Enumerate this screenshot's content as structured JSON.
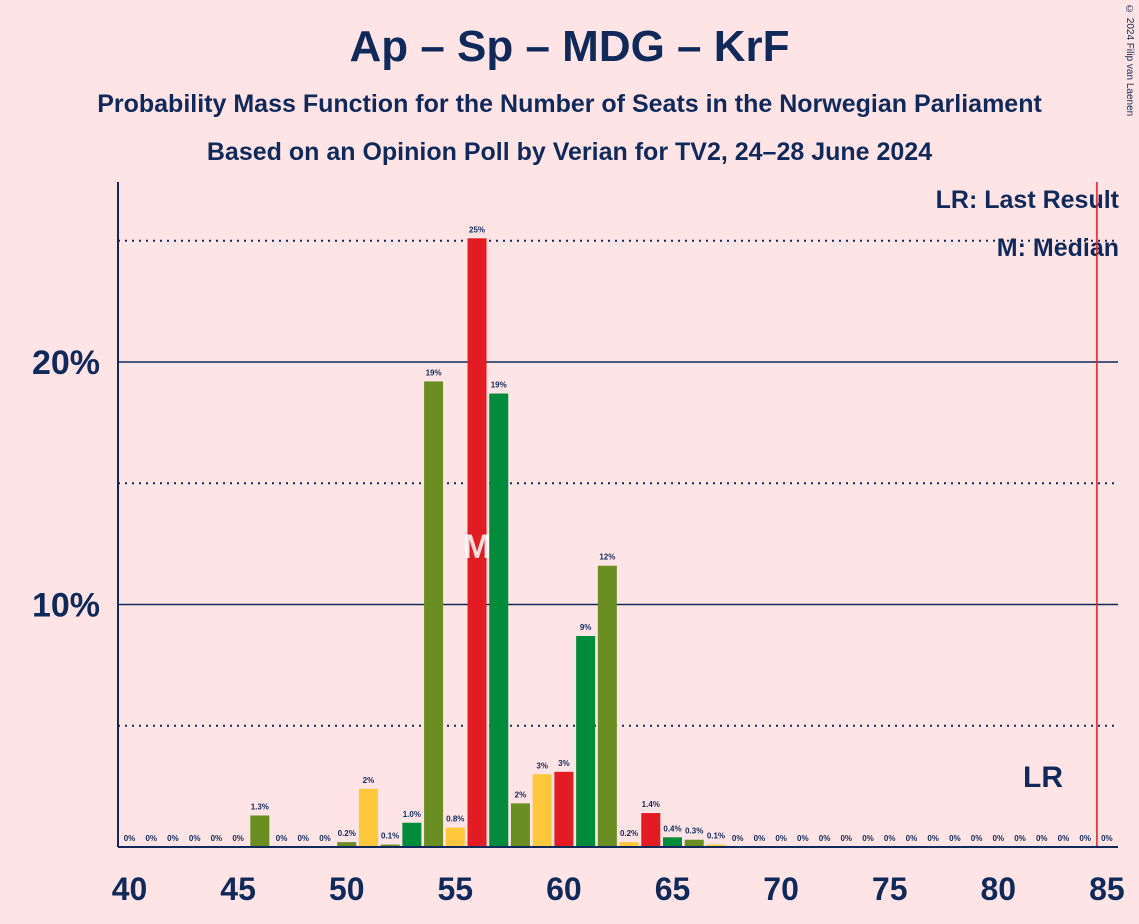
{
  "title": "Ap – Sp – MDG – KrF",
  "subtitle1": "Probability Mass Function for the Number of Seats in the Norwegian Parliament",
  "subtitle2": "Based on an Opinion Poll by Verian for TV2, 24–28 June 2024",
  "copyright": "© 2024 Filip van Laenen",
  "legend": {
    "last_result": "LR: Last Result",
    "median": "M: Median"
  },
  "markers": {
    "median_label": "M",
    "median_seat": 56,
    "last_result_label": "LR",
    "last_result_seat": 85
  },
  "colors": {
    "background": "#ffe4e6",
    "text": "#0f2a5a",
    "olive": "#6b8e23",
    "yellow": "#ffc83c",
    "green": "#008c3a",
    "red": "#e31b23",
    "lr_line": "#e31b23"
  },
  "chart_data": {
    "type": "bar",
    "x_range": [
      40,
      85
    ],
    "ylim": [
      0,
      27.5
    ],
    "y_ticks": [
      {
        "value": 10,
        "label": "10%"
      },
      {
        "value": 20,
        "label": "20%"
      }
    ],
    "x_ticks": [
      40,
      45,
      50,
      55,
      60,
      65,
      70,
      75,
      80,
      85
    ],
    "solid_gridlines": [
      10,
      20
    ],
    "dotted_gridlines": [
      5,
      15,
      25
    ],
    "bars": [
      {
        "x": 40,
        "value": 0,
        "label": "0%",
        "color": "olive"
      },
      {
        "x": 41,
        "value": 0,
        "label": "0%",
        "color": "yellow"
      },
      {
        "x": 42,
        "value": 0,
        "label": "0%",
        "color": "green"
      },
      {
        "x": 43,
        "value": 0,
        "label": "0%",
        "color": "red"
      },
      {
        "x": 44,
        "value": 0,
        "label": "0%",
        "color": "olive"
      },
      {
        "x": 45,
        "value": 0,
        "label": "0%",
        "color": "yellow"
      },
      {
        "x": 46,
        "value": 1.3,
        "label": "1.3%",
        "color": "olive"
      },
      {
        "x": 47,
        "value": 0,
        "label": "0%",
        "color": "red"
      },
      {
        "x": 48,
        "value": 0,
        "label": "0%",
        "color": "olive"
      },
      {
        "x": 49,
        "value": 0,
        "label": "0%",
        "color": "yellow"
      },
      {
        "x": 50,
        "value": 0.2,
        "label": "0.2%",
        "color": "olive"
      },
      {
        "x": 51,
        "value": 2.4,
        "label": "2%",
        "color": "yellow"
      },
      {
        "x": 52,
        "value": 0.1,
        "label": "0.1%",
        "color": "olive"
      },
      {
        "x": 53,
        "value": 1.0,
        "label": "1.0%",
        "color": "green"
      },
      {
        "x": 54,
        "value": 19.2,
        "label": "19%",
        "color": "olive"
      },
      {
        "x": 55,
        "value": 0.8,
        "label": "0.8%",
        "color": "yellow"
      },
      {
        "x": 56,
        "value": 25.1,
        "label": "25%",
        "color": "red"
      },
      {
        "x": 57,
        "value": 18.7,
        "label": "19%",
        "color": "green"
      },
      {
        "x": 58,
        "value": 1.8,
        "label": "2%",
        "color": "olive"
      },
      {
        "x": 59,
        "value": 3.0,
        "label": "3%",
        "color": "yellow"
      },
      {
        "x": 60,
        "value": 3.1,
        "label": "3%",
        "color": "red"
      },
      {
        "x": 61,
        "value": 8.7,
        "label": "9%",
        "color": "green"
      },
      {
        "x": 62,
        "value": 11.6,
        "label": "12%",
        "color": "olive"
      },
      {
        "x": 63,
        "value": 0.2,
        "label": "0.2%",
        "color": "yellow"
      },
      {
        "x": 64,
        "value": 1.4,
        "label": "1.4%",
        "color": "red"
      },
      {
        "x": 65,
        "value": 0.4,
        "label": "0.4%",
        "color": "green"
      },
      {
        "x": 66,
        "value": 0.3,
        "label": "0.3%",
        "color": "olive"
      },
      {
        "x": 67,
        "value": 0.1,
        "label": "0.1%",
        "color": "yellow"
      },
      {
        "x": 68,
        "value": 0,
        "label": "0%",
        "color": "red"
      },
      {
        "x": 69,
        "value": 0,
        "label": "0%",
        "color": "green"
      },
      {
        "x": 70,
        "value": 0,
        "label": "0%",
        "color": "olive"
      },
      {
        "x": 71,
        "value": 0,
        "label": "0%",
        "color": "yellow"
      },
      {
        "x": 72,
        "value": 0,
        "label": "0%",
        "color": "red"
      },
      {
        "x": 73,
        "value": 0,
        "label": "0%",
        "color": "green"
      },
      {
        "x": 74,
        "value": 0,
        "label": "0%",
        "color": "olive"
      },
      {
        "x": 75,
        "value": 0,
        "label": "0%",
        "color": "yellow"
      },
      {
        "x": 76,
        "value": 0,
        "label": "0%",
        "color": "red"
      },
      {
        "x": 77,
        "value": 0,
        "label": "0%",
        "color": "green"
      },
      {
        "x": 78,
        "value": 0,
        "label": "0%",
        "color": "olive"
      },
      {
        "x": 79,
        "value": 0,
        "label": "0%",
        "color": "yellow"
      },
      {
        "x": 80,
        "value": 0,
        "label": "0%",
        "color": "red"
      },
      {
        "x": 81,
        "value": 0,
        "label": "0%",
        "color": "green"
      },
      {
        "x": 82,
        "value": 0,
        "label": "0%",
        "color": "olive"
      },
      {
        "x": 83,
        "value": 0,
        "label": "0%",
        "color": "yellow"
      },
      {
        "x": 84,
        "value": 0,
        "label": "0%",
        "color": "red"
      },
      {
        "x": 85,
        "value": 0,
        "label": "0%",
        "color": "green"
      }
    ]
  }
}
